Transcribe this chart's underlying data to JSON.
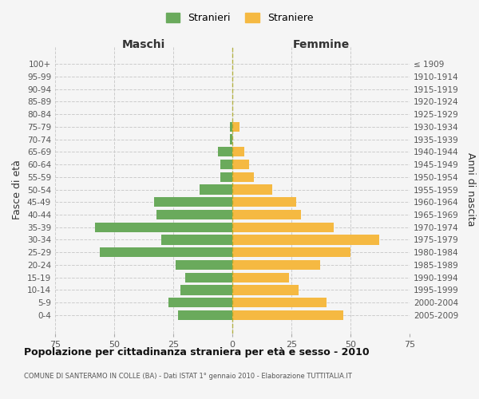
{
  "age_groups": [
    "0-4",
    "5-9",
    "10-14",
    "15-19",
    "20-24",
    "25-29",
    "30-34",
    "35-39",
    "40-44",
    "45-49",
    "50-54",
    "55-59",
    "60-64",
    "65-69",
    "70-74",
    "75-79",
    "80-84",
    "85-89",
    "90-94",
    "95-99",
    "100+"
  ],
  "birth_years": [
    "2005-2009",
    "2000-2004",
    "1995-1999",
    "1990-1994",
    "1985-1989",
    "1980-1984",
    "1975-1979",
    "1970-1974",
    "1965-1969",
    "1960-1964",
    "1955-1959",
    "1950-1954",
    "1945-1949",
    "1940-1944",
    "1935-1939",
    "1930-1934",
    "1925-1929",
    "1920-1924",
    "1915-1919",
    "1910-1914",
    "≤ 1909"
  ],
  "males": [
    23,
    27,
    22,
    20,
    24,
    56,
    30,
    58,
    32,
    33,
    14,
    5,
    5,
    6,
    1,
    1,
    0,
    0,
    0,
    0,
    0
  ],
  "females": [
    47,
    40,
    28,
    24,
    37,
    50,
    62,
    43,
    29,
    27,
    17,
    9,
    7,
    5,
    0,
    3,
    0,
    0,
    0,
    0,
    0
  ],
  "male_color": "#6aaa5c",
  "female_color": "#f5b942",
  "background_color": "#f5f5f5",
  "grid_color": "#cccccc",
  "title": "Popolazione per cittadinanza straniera per età e sesso - 2010",
  "subtitle": "COMUNE DI SANTERAMO IN COLLE (BA) - Dati ISTAT 1° gennaio 2010 - Elaborazione TUTTITALIA.IT",
  "xlabel_left": "Maschi",
  "xlabel_right": "Femmine",
  "ylabel_left": "Fasce di età",
  "ylabel_right": "Anni di nascita",
  "legend_males": "Stranieri",
  "legend_females": "Straniere",
  "xlim": 75
}
